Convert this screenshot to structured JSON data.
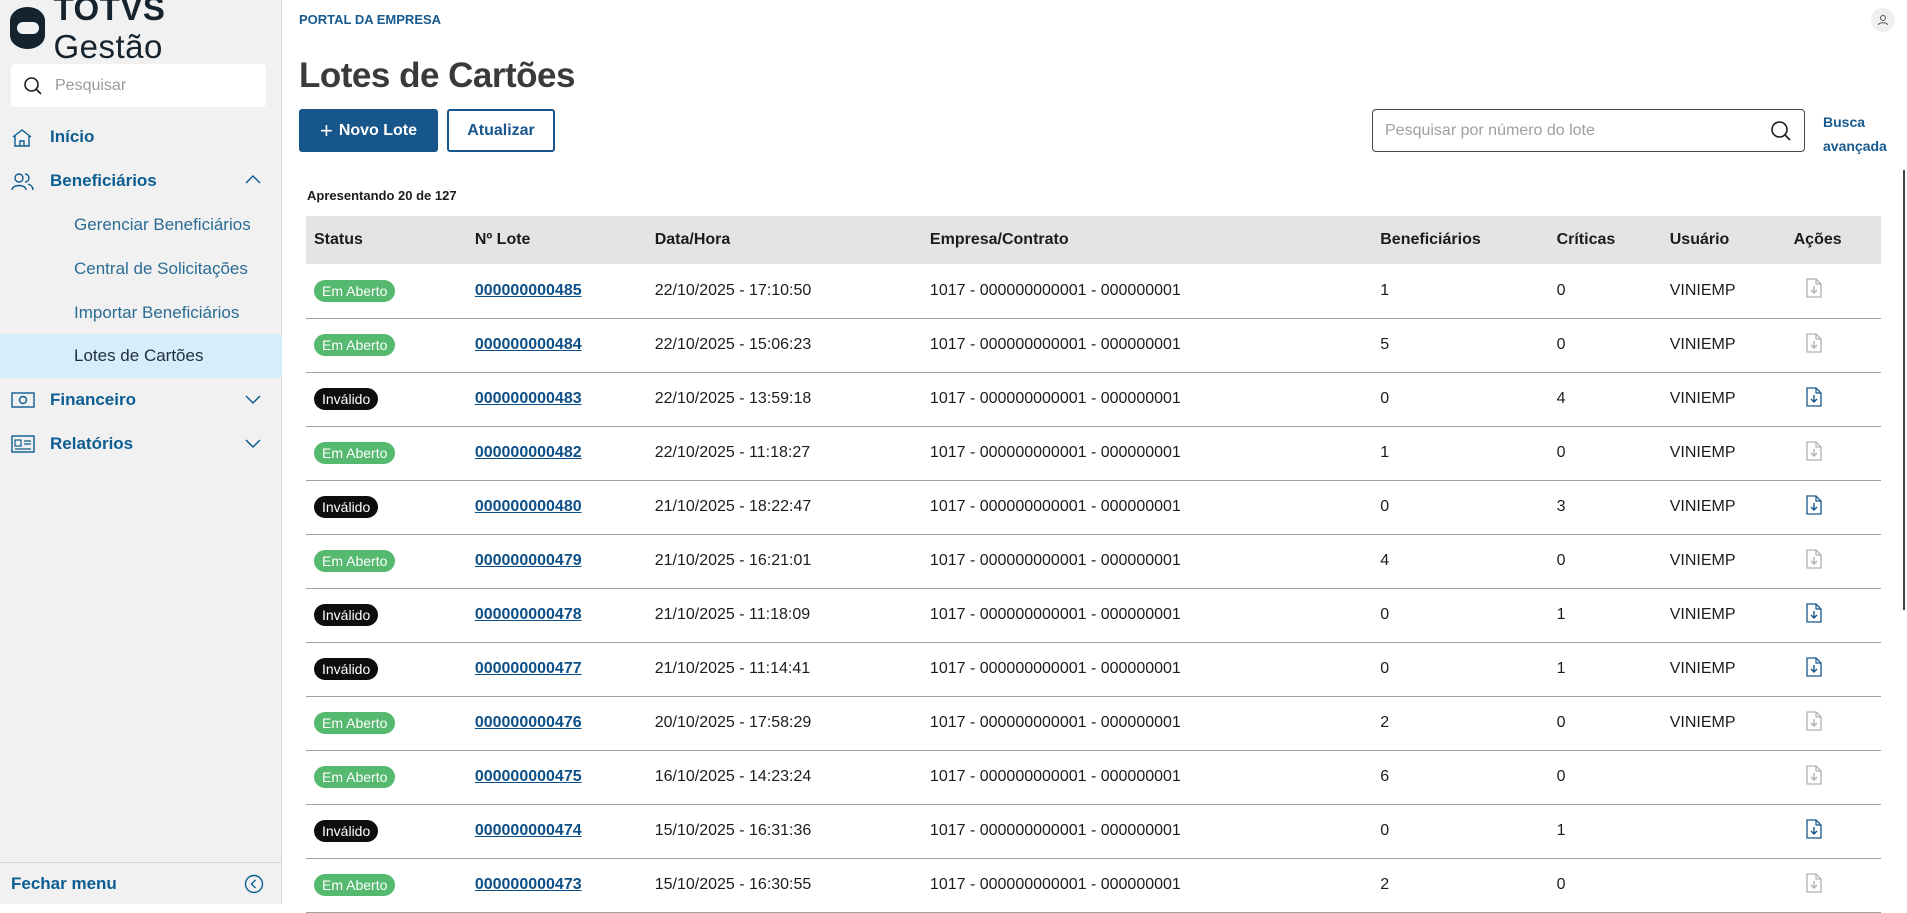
{
  "sidebar": {
    "logo": "TOTVS Gestão",
    "search_placeholder": "Pesquisar",
    "items": [
      {
        "label": "Início",
        "icon": "home-icon"
      },
      {
        "label": "Beneficiários",
        "icon": "users-icon",
        "expanded": true
      },
      {
        "label": "Gerenciar Beneficiários"
      },
      {
        "label": "Central de Solicitações"
      },
      {
        "label": "Importar Beneficiários"
      },
      {
        "label": "Lotes de Cartões",
        "active": true
      },
      {
        "label": "Financeiro",
        "icon": "money-icon"
      },
      {
        "label": "Relatórios",
        "icon": "report-icon"
      }
    ],
    "close_menu": "Fechar menu"
  },
  "header": {
    "portal": "PORTAL DA EMPRESA",
    "title": "Lotes de Cartões"
  },
  "toolbar": {
    "new_label": "Novo Lote",
    "refresh_label": "Atualizar",
    "search_placeholder": "Pesquisar por número do lote",
    "advanced_1": "Busca",
    "advanced_2": "avançada"
  },
  "count_text": "Apresentando 20 de 127",
  "colors": {
    "primary": "#17568a",
    "open": "#55b96f",
    "invalid": "#0d0d0d"
  },
  "table": {
    "columns": [
      "Status",
      "Nº Lote",
      "Data/Hora",
      "Empresa/Contrato",
      "Beneficiários",
      "Críticas",
      "Usuário",
      "Ações"
    ],
    "rows": [
      [
        "Em Aberto",
        "000000000485",
        "22/10/2025 - 17:10:50",
        "1017 - 000000000001 - 000000001",
        "1",
        "0",
        "VINIEMP"
      ],
      [
        "Em Aberto",
        "000000000484",
        "22/10/2025 - 15:06:23",
        "1017 - 000000000001 - 000000001",
        "5",
        "0",
        "VINIEMP"
      ],
      [
        "Inválido",
        "000000000483",
        "22/10/2025 - 13:59:18",
        "1017 - 000000000001 - 000000001",
        "0",
        "4",
        "VINIEMP"
      ],
      [
        "Em Aberto",
        "000000000482",
        "22/10/2025 - 11:18:27",
        "1017 - 000000000001 - 000000001",
        "1",
        "0",
        "VINIEMP"
      ],
      [
        "Inválido",
        "000000000480",
        "21/10/2025 - 18:22:47",
        "1017 - 000000000001 - 000000001",
        "0",
        "3",
        "VINIEMP"
      ],
      [
        "Em Aberto",
        "000000000479",
        "21/10/2025 - 16:21:01",
        "1017 - 000000000001 - 000000001",
        "4",
        "0",
        "VINIEMP"
      ],
      [
        "Inválido",
        "000000000478",
        "21/10/2025 - 11:18:09",
        "1017 - 000000000001 - 000000001",
        "0",
        "1",
        "VINIEMP"
      ],
      [
        "Inválido",
        "000000000477",
        "21/10/2025 - 11:14:41",
        "1017 - 000000000001 - 000000001",
        "0",
        "1",
        "VINIEMP"
      ],
      [
        "Em Aberto",
        "000000000476",
        "20/10/2025 - 17:58:29",
        "1017 - 000000000001 - 000000001",
        "2",
        "0",
        "VINIEMP"
      ],
      [
        "Em Aberto",
        "000000000475",
        "16/10/2025 - 14:23:24",
        "1017 - 000000000001 - 000000001",
        "6",
        "0",
        ""
      ],
      [
        "Inválido",
        "000000000474",
        "15/10/2025 - 16:31:36",
        "1017 - 000000000001 - 000000001",
        "0",
        "1",
        ""
      ],
      [
        "Em Aberto",
        "000000000473",
        "15/10/2025 - 16:30:55",
        "1017 - 000000000001 - 000000001",
        "2",
        "0",
        ""
      ]
    ]
  }
}
